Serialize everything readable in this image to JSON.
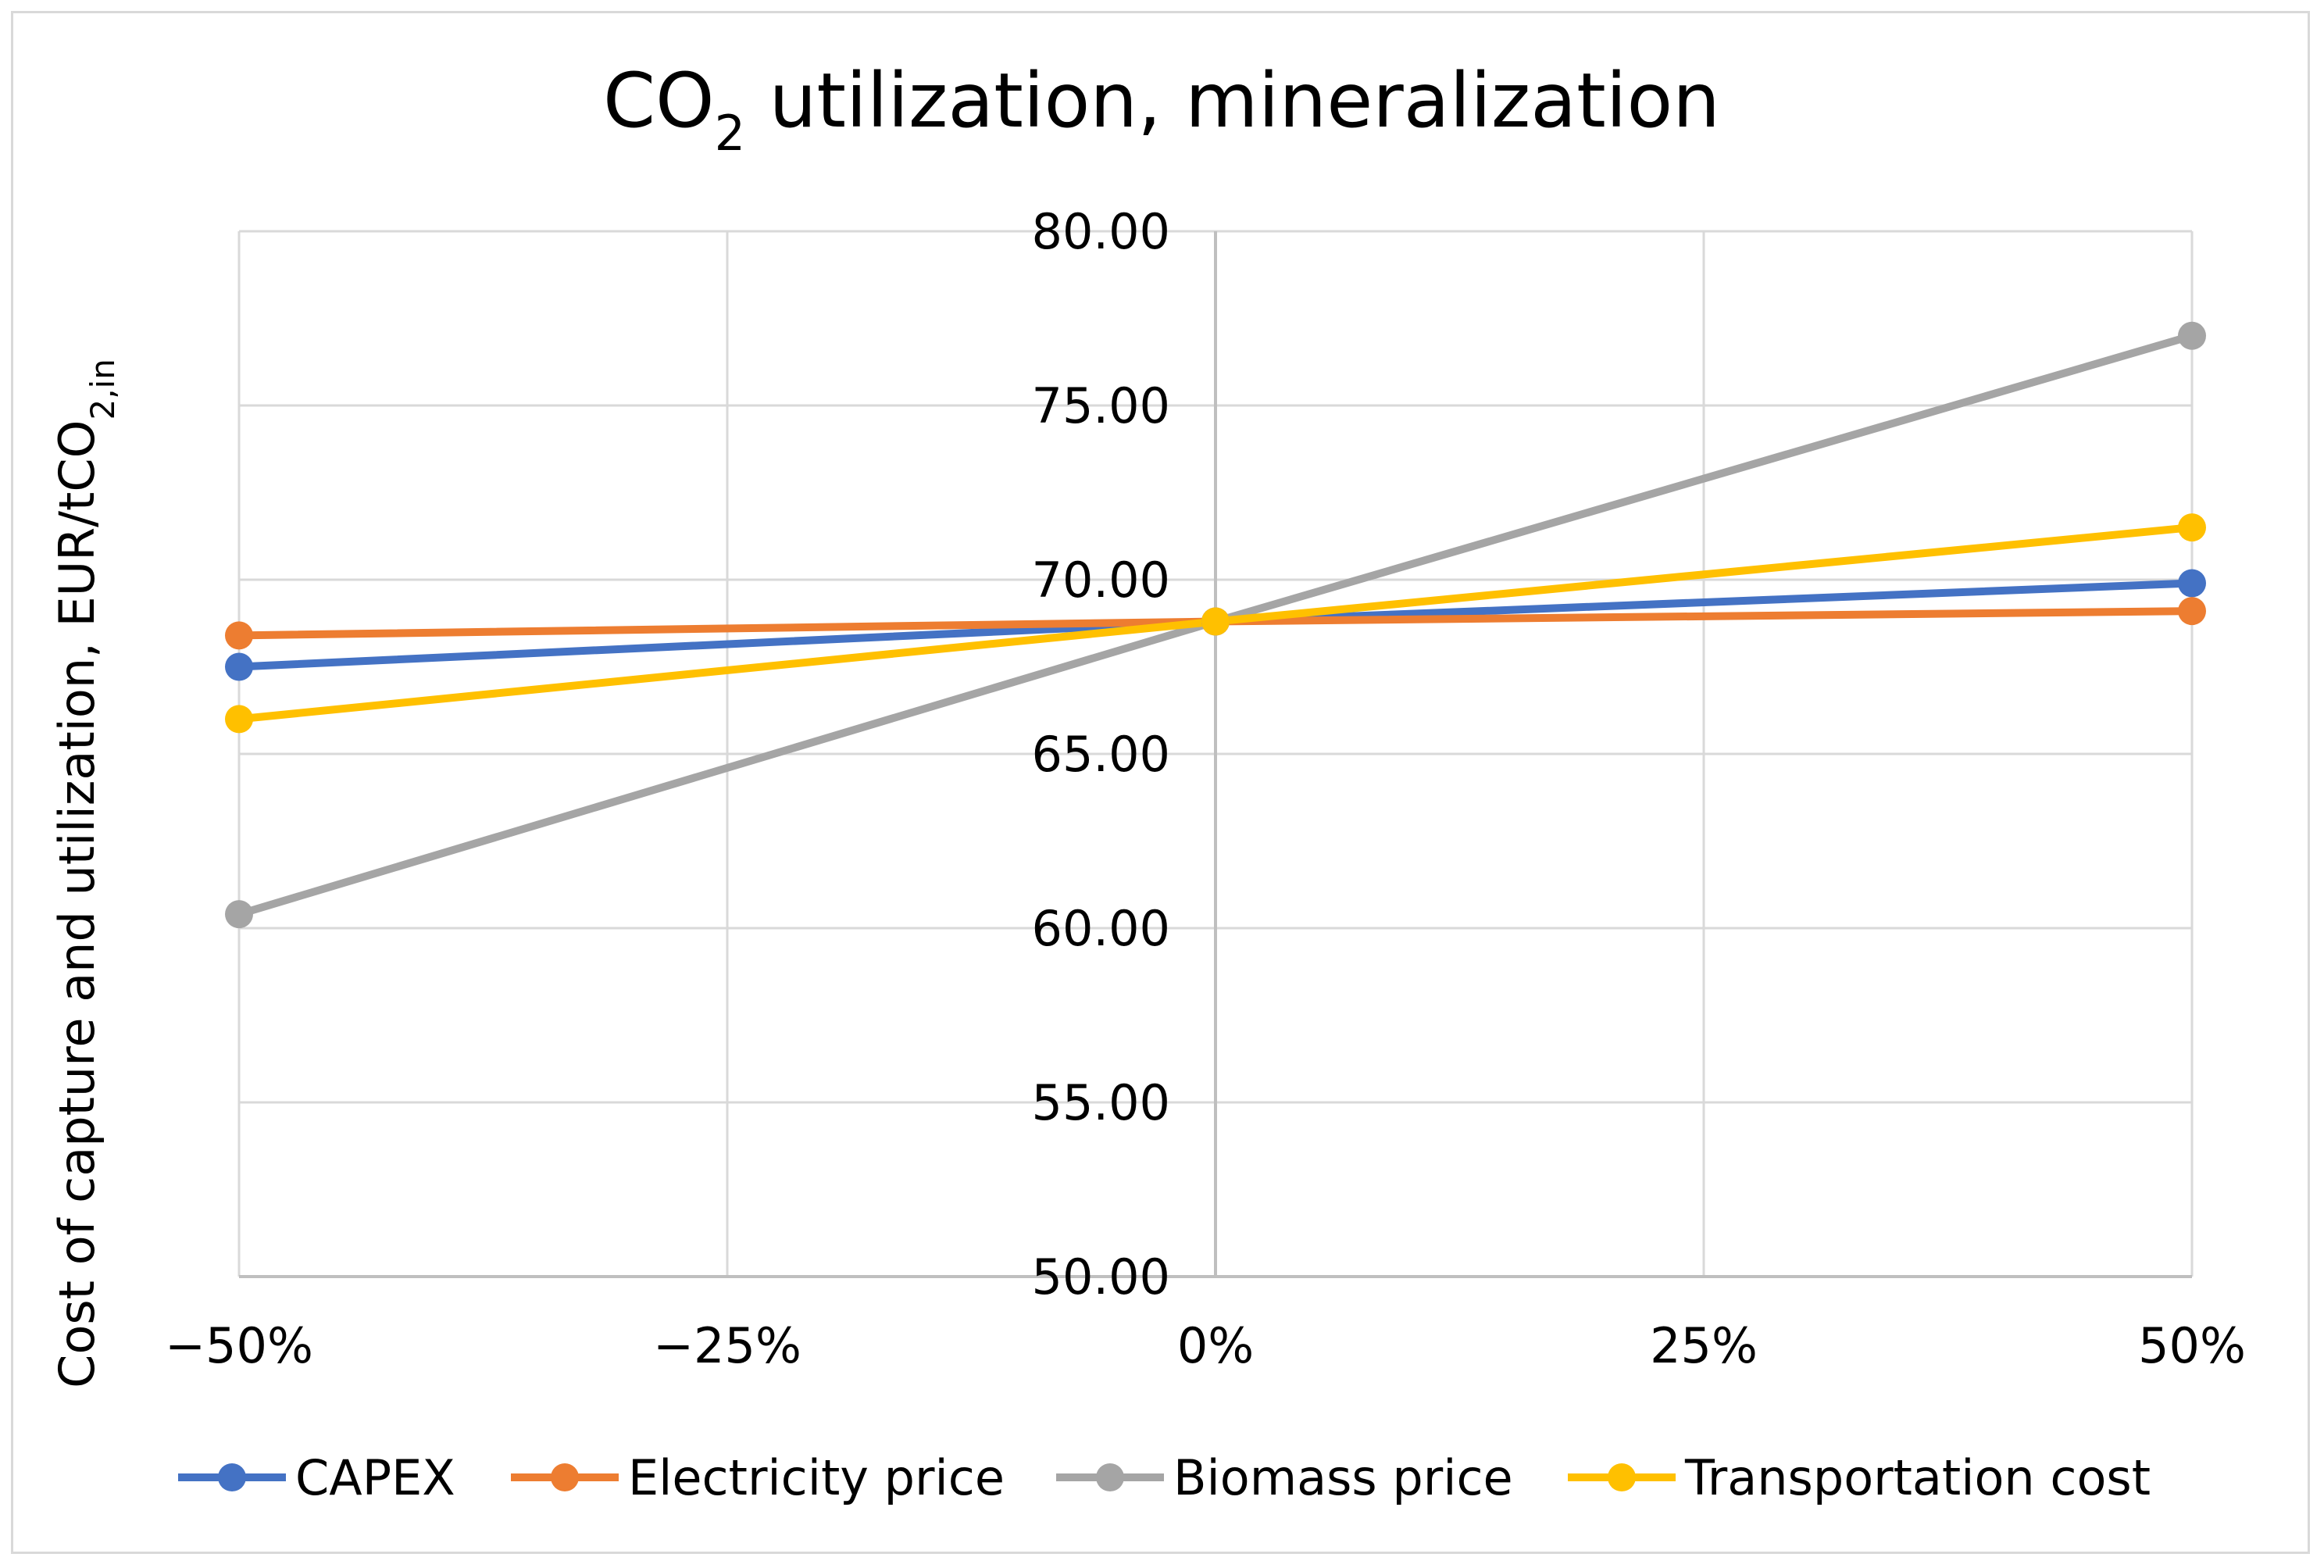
{
  "chart_data": {
    "type": "line",
    "title_main": "CO",
    "title_sub": "2",
    "title_rest": " utilization, mineralization",
    "ylabel_main": "Cost of capture and utilization,  EUR/tCO",
    "ylabel_sub": "2,in",
    "xlabel": "",
    "categories": [
      "−50%",
      "−25%",
      "0%",
      "25%",
      "50%"
    ],
    "x": [
      -50,
      -25,
      0,
      25,
      50
    ],
    "xlim": [
      -50,
      50
    ],
    "ylim": [
      50,
      80
    ],
    "yticks": [
      "50.00",
      "55.00",
      "60.00",
      "65.00",
      "70.00",
      "75.00",
      "80.00"
    ],
    "ytick_values": [
      50,
      55,
      60,
      65,
      70,
      75,
      80
    ],
    "grid": true,
    "legend_position": "bottom",
    "series": [
      {
        "name": "CAPEX",
        "color": "#4472c4",
        "x": [
          -50,
          0,
          50
        ],
        "values": [
          67.5,
          68.8,
          69.9
        ]
      },
      {
        "name": "Electricity price",
        "color": "#ed7d31",
        "x": [
          -50,
          0,
          50
        ],
        "values": [
          68.4,
          68.8,
          69.1
        ]
      },
      {
        "name": "Biomass price",
        "color": "#a5a5a5",
        "x": [
          -50,
          0,
          50
        ],
        "values": [
          60.4,
          68.8,
          77.0
        ]
      },
      {
        "name": "Transportation cost",
        "color": "#ffc000",
        "x": [
          -50,
          0,
          50
        ],
        "values": [
          66.0,
          68.8,
          71.5
        ]
      }
    ]
  }
}
